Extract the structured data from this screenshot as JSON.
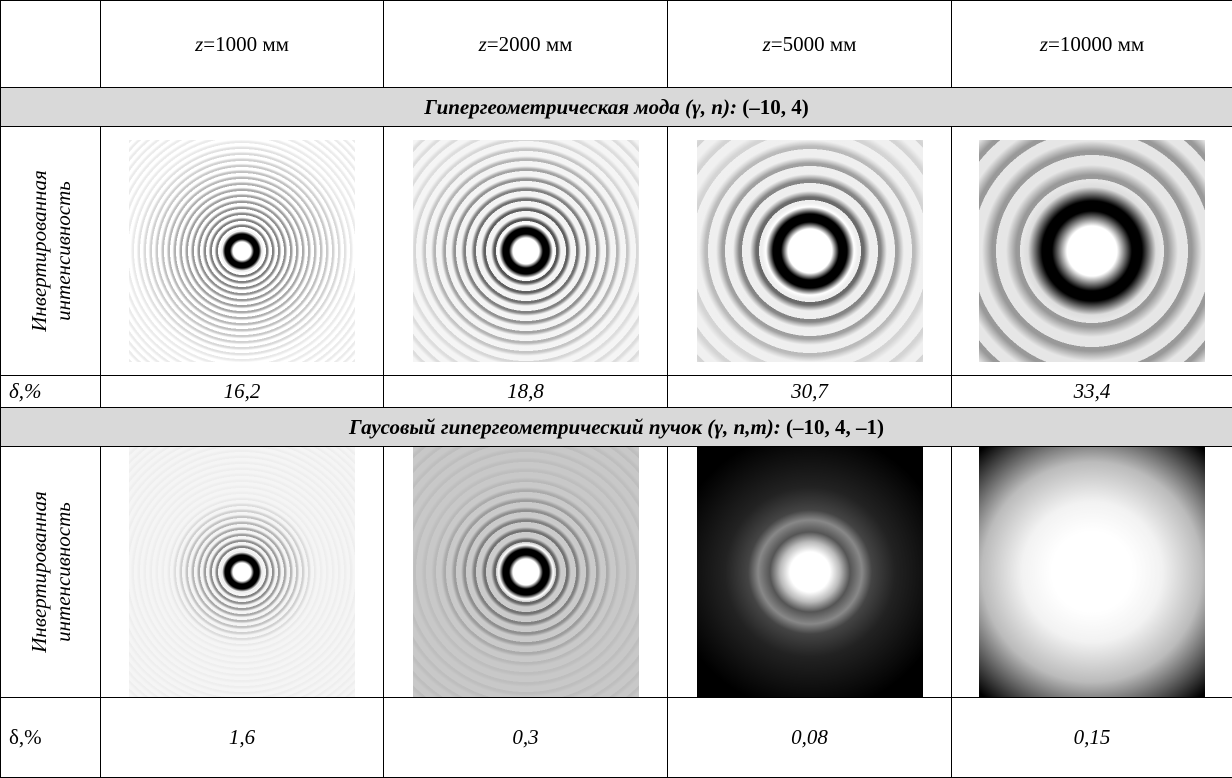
{
  "columns": [
    {
      "variable": "z",
      "text": "=1000 мм"
    },
    {
      "variable": "z",
      "text": "=2000 мм"
    },
    {
      "variable": "z",
      "text": "=5000 мм"
    },
    {
      "variable": "z",
      "text": "=10000 мм"
    }
  ],
  "sections": [
    {
      "title": "Гипергеометрическая мода",
      "params": "(γ, n):",
      "values": "(–10, 4)",
      "row_label": [
        "Инвертированная",
        "интенсивность"
      ],
      "metric_label": "δ,%",
      "metrics": [
        "16,2",
        "18,8",
        "30,7",
        "33,4"
      ]
    },
    {
      "title": "Гаусовый гипергеометрический пучок",
      "params": "(γ, n,m):",
      "values": "(–10, 4, –1)",
      "row_label": [
        "Инвертированная",
        "интенсивность"
      ],
      "metric_label": "δ,%",
      "metrics": [
        "1,6",
        "0,3",
        "0,08",
        "0,15"
      ]
    }
  ]
}
